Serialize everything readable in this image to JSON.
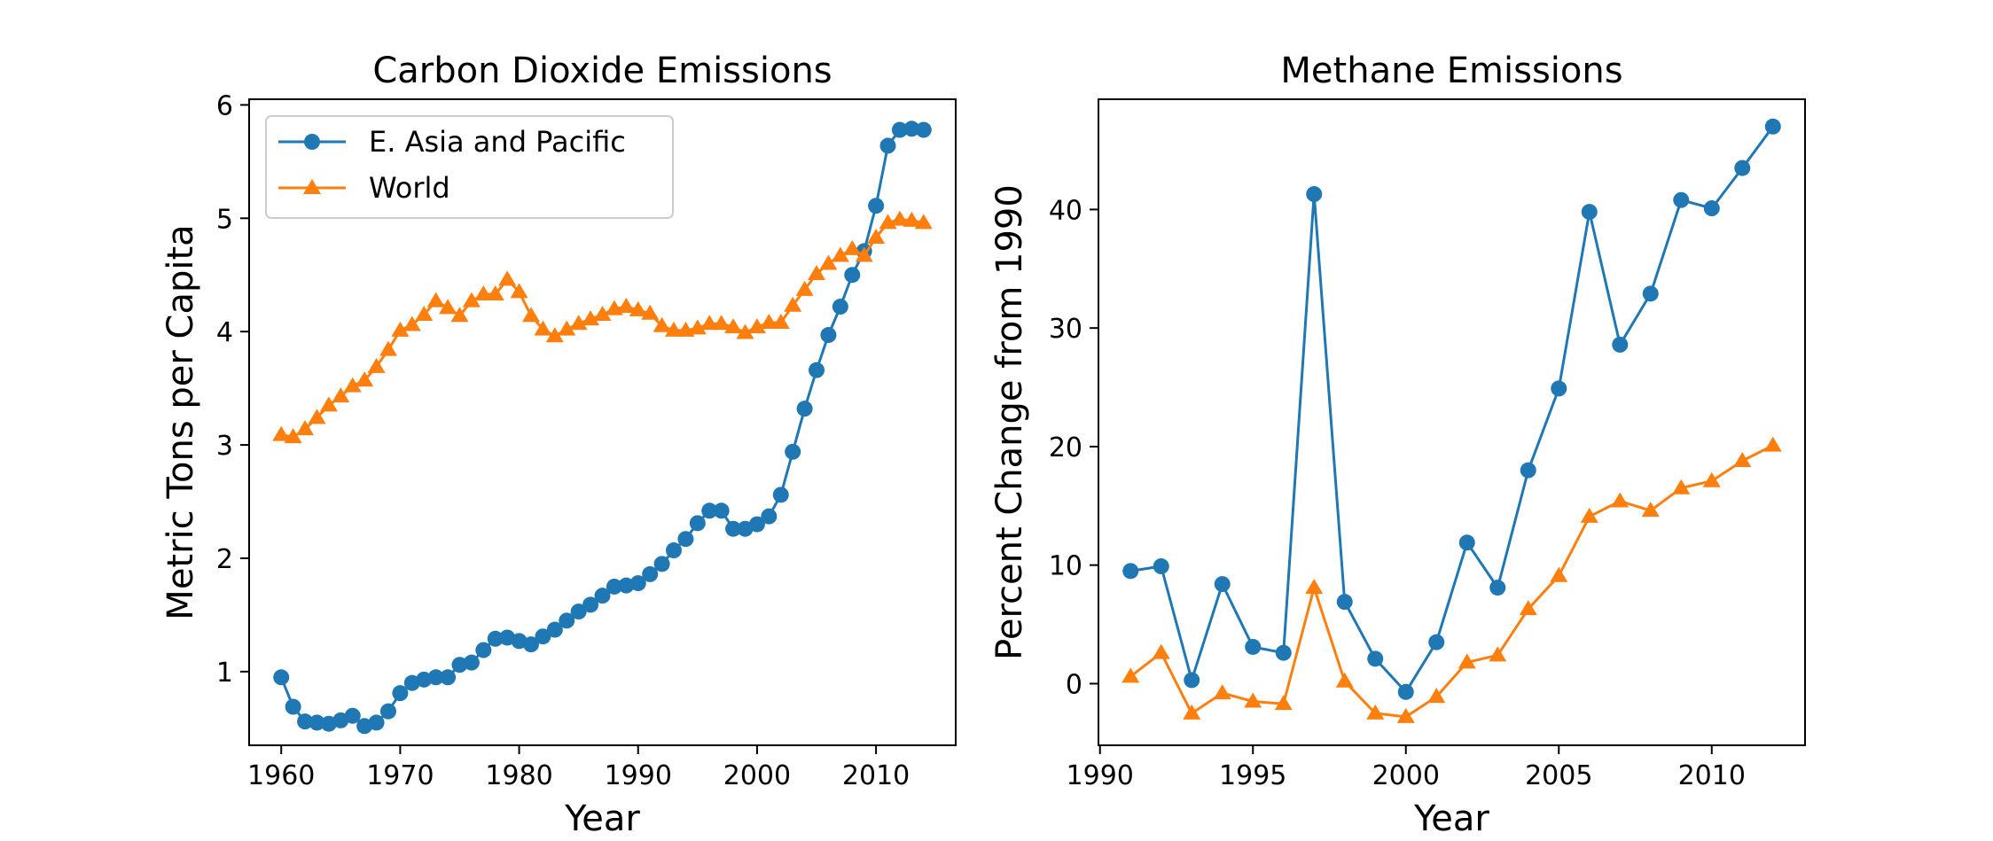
{
  "colors": {
    "series_0": "#1f77b4",
    "series_1": "#ff7f0e"
  },
  "chart_data": [
    {
      "type": "line",
      "title": "Carbon Dioxide Emissions",
      "xlabel": "Year",
      "ylabel": "Metric Tons per Capita",
      "xlim": [
        1957.3,
        2016.7
      ],
      "ylim": [
        0.35,
        6.05
      ],
      "xticks": [
        1960,
        1970,
        1980,
        1990,
        2000,
        2010
      ],
      "yticks": [
        1,
        2,
        3,
        4,
        5,
        6
      ],
      "legend": {
        "position": "top-left",
        "entries": [
          "E. Asia and Pacific",
          "World"
        ]
      },
      "x": [
        1960,
        1961,
        1962,
        1963,
        1964,
        1965,
        1966,
        1967,
        1968,
        1969,
        1970,
        1971,
        1972,
        1973,
        1974,
        1975,
        1976,
        1977,
        1978,
        1979,
        1980,
        1981,
        1982,
        1983,
        1984,
        1985,
        1986,
        1987,
        1988,
        1989,
        1990,
        1991,
        1992,
        1993,
        1994,
        1995,
        1996,
        1997,
        1998,
        1999,
        2000,
        2001,
        2002,
        2003,
        2004,
        2005,
        2006,
        2007,
        2008,
        2009,
        2010,
        2011,
        2012,
        2013,
        2014
      ],
      "series": [
        {
          "name": "E. Asia and Pacific",
          "marker": "circle",
          "color": "#1f77b4",
          "values": [
            0.95,
            0.69,
            0.56,
            0.55,
            0.54,
            0.57,
            0.61,
            0.52,
            0.55,
            0.65,
            0.81,
            0.9,
            0.93,
            0.95,
            0.95,
            1.06,
            1.08,
            1.19,
            1.29,
            1.3,
            1.27,
            1.24,
            1.31,
            1.37,
            1.45,
            1.53,
            1.59,
            1.67,
            1.75,
            1.76,
            1.78,
            1.86,
            1.95,
            2.07,
            2.17,
            2.31,
            2.42,
            2.42,
            2.26,
            2.26,
            2.3,
            2.37,
            2.56,
            2.94,
            3.32,
            3.66,
            3.97,
            4.22,
            4.5,
            4.71,
            5.11,
            5.64,
            5.78,
            5.79,
            5.78
          ]
        },
        {
          "name": "World",
          "marker": "triangle",
          "color": "#ff7f0e",
          "values": [
            3.09,
            3.07,
            3.14,
            3.24,
            3.35,
            3.43,
            3.52,
            3.57,
            3.69,
            3.84,
            4.01,
            4.06,
            4.15,
            4.27,
            4.21,
            4.14,
            4.27,
            4.33,
            4.33,
            4.46,
            4.35,
            4.14,
            4.02,
            3.96,
            4.02,
            4.07,
            4.11,
            4.15,
            4.2,
            4.22,
            4.19,
            4.16,
            4.05,
            4.01,
            4.01,
            4.03,
            4.07,
            4.07,
            4.04,
            3.99,
            4.04,
            4.08,
            4.08,
            4.23,
            4.37,
            4.51,
            4.6,
            4.67,
            4.73,
            4.67,
            4.83,
            4.96,
            4.99,
            4.98,
            4.96
          ]
        }
      ]
    },
    {
      "type": "line",
      "title": "Methane Emissions",
      "xlabel": "Year",
      "ylabel": "Percent Change from 1990",
      "xlim": [
        1989.95,
        2013.05
      ],
      "ylim": [
        -5.2,
        49.3
      ],
      "xticks": [
        1990,
        1995,
        2000,
        2005,
        2010
      ],
      "yticks": [
        0,
        10,
        20,
        30,
        40
      ],
      "x": [
        1991,
        1992,
        1993,
        1994,
        1995,
        1996,
        1997,
        1998,
        1999,
        2000,
        2001,
        2002,
        2003,
        2004,
        2005,
        2006,
        2007,
        2008,
        2009,
        2010,
        2011,
        2012
      ],
      "series": [
        {
          "name": "E. Asia and Pacific",
          "marker": "circle",
          "color": "#1f77b4",
          "values": [
            9.5,
            9.9,
            0.3,
            8.4,
            3.1,
            2.6,
            41.3,
            6.9,
            2.1,
            -0.7,
            3.5,
            11.9,
            8.1,
            18.0,
            24.9,
            39.8,
            28.6,
            32.9,
            40.8,
            40.1,
            43.5,
            47.0
          ]
        },
        {
          "name": "World",
          "marker": "triangle",
          "color": "#ff7f0e",
          "values": [
            0.6,
            2.6,
            -2.5,
            -0.8,
            -1.5,
            -1.7,
            8.1,
            0.2,
            -2.5,
            -2.8,
            -1.1,
            1.8,
            2.4,
            6.3,
            9.1,
            14.1,
            15.4,
            14.6,
            16.5,
            17.1,
            18.8,
            20.1
          ]
        }
      ]
    }
  ]
}
